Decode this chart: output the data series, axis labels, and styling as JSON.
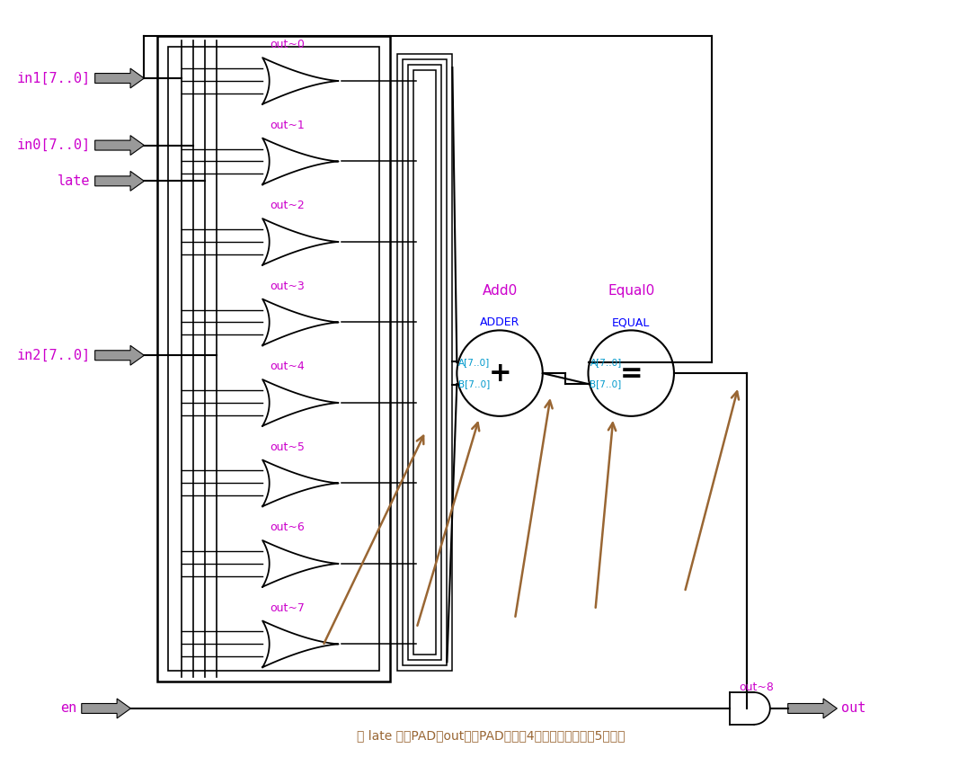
{
  "bg_color": "#ffffff",
  "purple": "#cc00cc",
  "blue": "#0000ff",
  "cyan_blue": "#0099cc",
  "brown": "#996633",
  "black": "#000000",
  "gate_labels": [
    "out~0",
    "out~1",
    "out~2",
    "out~3",
    "out~4",
    "out~5",
    "out~6",
    "out~7"
  ],
  "bottom_text": "从 late 输入PAD到out输出PAD一共有4个中间逻辑单元，5端路径"
}
